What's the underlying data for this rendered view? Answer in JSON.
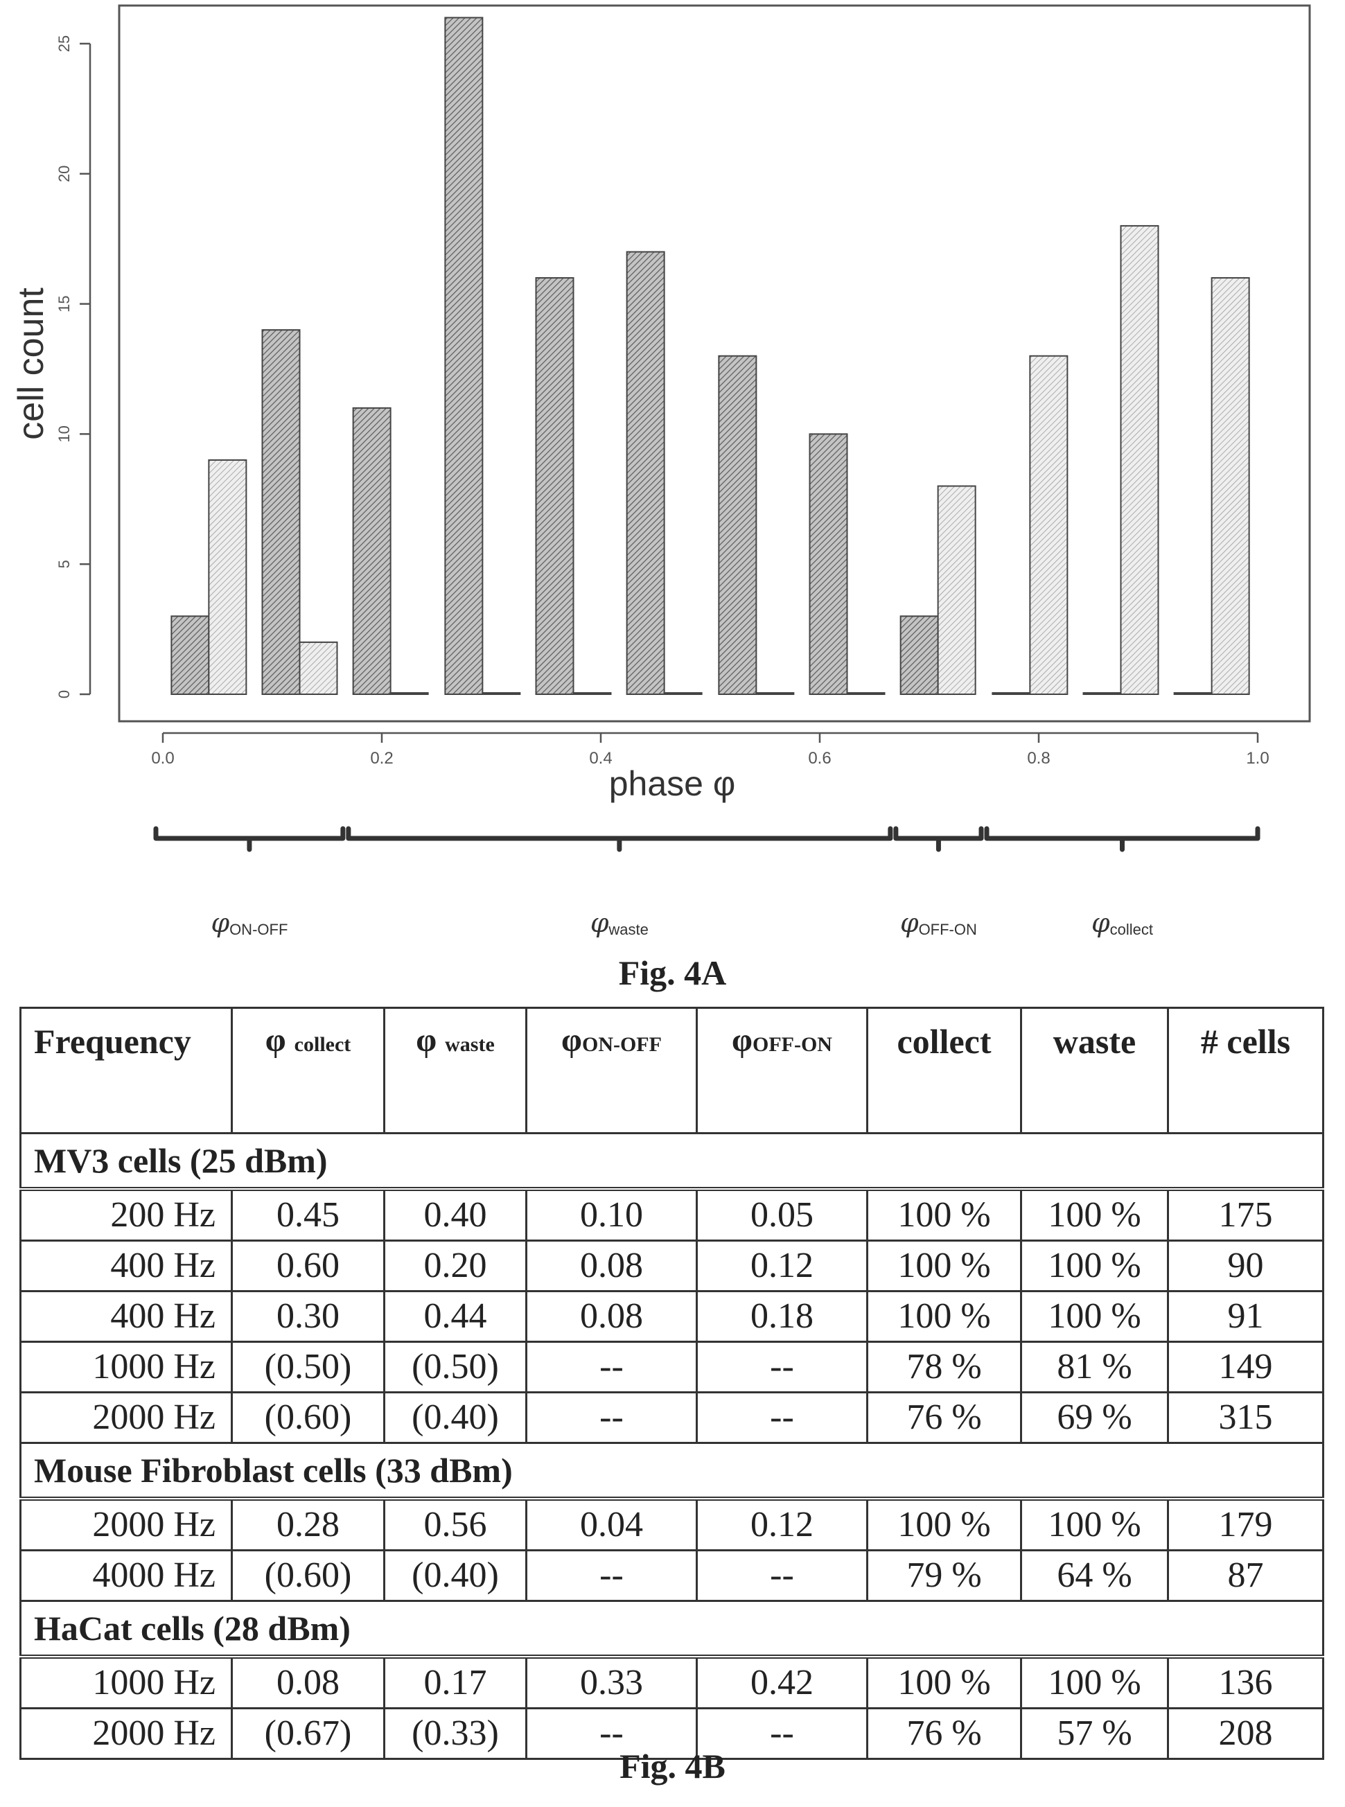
{
  "chart_data": {
    "type": "bar",
    "x": [
      0.0,
      0.2,
      0.4,
      0.6,
      0.8,
      1.0
    ],
    "x_tick_labels": [
      "0.0",
      "0.2",
      "0.4",
      "0.6",
      "0.8",
      "1.0"
    ],
    "y_ticks": [
      0,
      5,
      10,
      15,
      20,
      25
    ],
    "y_tick_labels": [
      "0",
      "5",
      "10",
      "15",
      "20",
      "25"
    ],
    "xlabel": "phase φ",
    "ylabel": "cell count",
    "xlim": [
      0.0,
      1.0
    ],
    "ylim": [
      0,
      26
    ],
    "grid": false,
    "bar_groups": [
      {
        "x_center": 0.042,
        "values": [
          3,
          9
        ]
      },
      {
        "x_center": 0.125,
        "values": [
          14,
          2
        ]
      },
      {
        "x_center": 0.208,
        "values": [
          11,
          0
        ]
      },
      {
        "x_center": 0.292,
        "values": [
          26,
          0
        ]
      },
      {
        "x_center": 0.375,
        "values": [
          16,
          0
        ]
      },
      {
        "x_center": 0.458,
        "values": [
          17,
          0
        ]
      },
      {
        "x_center": 0.542,
        "values": [
          13,
          0
        ]
      },
      {
        "x_center": 0.625,
        "values": [
          10,
          0
        ]
      },
      {
        "x_center": 0.708,
        "values": [
          3,
          8
        ]
      },
      {
        "x_center": 0.792,
        "values": [
          0,
          13
        ]
      },
      {
        "x_center": 0.875,
        "values": [
          0,
          18
        ]
      },
      {
        "x_center": 0.958,
        "values": [
          0,
          16
        ]
      }
    ],
    "series_colors": [
      "#a8a8a8",
      "#d6d6d6"
    ],
    "ranges": [
      {
        "label_main": "φ",
        "label_sub": "ON-OFF",
        "x_start": 0.0,
        "x_end": 0.167
      },
      {
        "label_main": "φ",
        "label_sub": "waste",
        "x_start": 0.167,
        "x_end": 0.667
      },
      {
        "label_main": "φ",
        "label_sub": "OFF-ON",
        "x_start": 0.667,
        "x_end": 0.75
      },
      {
        "label_main": "φ",
        "label_sub": "collect",
        "x_start": 0.75,
        "x_end": 1.0
      }
    ]
  },
  "captions": {
    "fig_a": "Fig. 4A",
    "fig_b": "Fig. 4B"
  },
  "table": {
    "headers": {
      "frequency": "Frequency",
      "phi_collect": {
        "symbol": "φ",
        "sub": "collect"
      },
      "phi_waste": {
        "symbol": "φ",
        "sub": "waste"
      },
      "phi_on_off": {
        "symbol": "φ",
        "sub": "ON-OFF"
      },
      "phi_off_on": {
        "symbol": "φ",
        "sub": "OFF-ON"
      },
      "collect": "collect",
      "waste": "waste",
      "cells": "# cells"
    },
    "groups": [
      {
        "title": "MV3 cells (25 dBm)",
        "rows": [
          [
            "200 Hz",
            "0.45",
            "0.40",
            "0.10",
            "0.05",
            "100 %",
            "100 %",
            "175"
          ],
          [
            "400 Hz",
            "0.60",
            "0.20",
            "0.08",
            "0.12",
            "100 %",
            "100 %",
            "90"
          ],
          [
            "400 Hz",
            "0.30",
            "0.44",
            "0.08",
            "0.18",
            "100 %",
            "100 %",
            "91"
          ],
          [
            "1000 Hz",
            "(0.50)",
            "(0.50)",
            "--",
            "--",
            "78 %",
            "81 %",
            "149"
          ],
          [
            "2000 Hz",
            "(0.60)",
            "(0.40)",
            "--",
            "--",
            "76 %",
            "69 %",
            "315"
          ]
        ]
      },
      {
        "title": "Mouse Fibroblast cells (33 dBm)",
        "rows": [
          [
            "2000 Hz",
            "0.28",
            "0.56",
            "0.04",
            "0.12",
            "100 %",
            "100 %",
            "179"
          ],
          [
            "4000 Hz",
            "(0.60)",
            "(0.40)",
            "--",
            "--",
            "79 %",
            "64 %",
            "87"
          ]
        ]
      },
      {
        "title": "HaCat cells (28 dBm)",
        "rows": [
          [
            "1000 Hz",
            "0.08",
            "0.17",
            "0.33",
            "0.42",
            "100 %",
            "100 %",
            "136"
          ],
          [
            "2000 Hz",
            "(0.67)",
            "(0.33)",
            "--",
            "--",
            "76 %",
            "57 %",
            "208"
          ]
        ]
      }
    ]
  }
}
